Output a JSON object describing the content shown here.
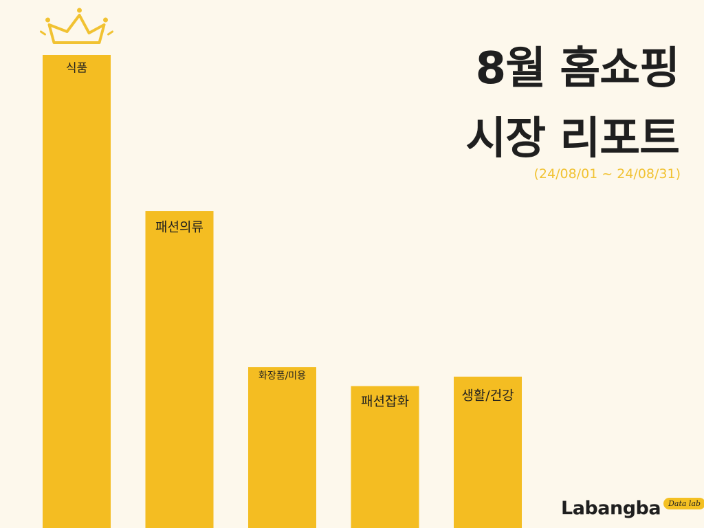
{
  "title": {
    "line1": "8월 홈쇼핑",
    "line2": "시장 리포트"
  },
  "subtitle": "(24/08/01 ~ 24/08/31)",
  "logo": {
    "name": "Labangba",
    "tag": "Data lab"
  },
  "colors": {
    "bar": "#f4bd22",
    "background": "#fdf8ec",
    "crown": "#f1c232",
    "title": "#1f1f1f"
  },
  "chart_data": {
    "type": "bar",
    "categories": [
      "식품",
      "패션의류",
      "화장품/미용",
      "패션잡화",
      "생활/건강"
    ],
    "values": [
      100,
      67,
      34,
      30,
      32
    ],
    "title": "8월 홈쇼핑 시장 리포트",
    "subtitle": "(24/08/01 ~ 24/08/31)",
    "xlabel": "",
    "ylabel": "",
    "ylim": [
      0,
      100
    ],
    "grid": false,
    "legend": "none",
    "value_labels": false,
    "top_category_icon": "crown-icon"
  }
}
